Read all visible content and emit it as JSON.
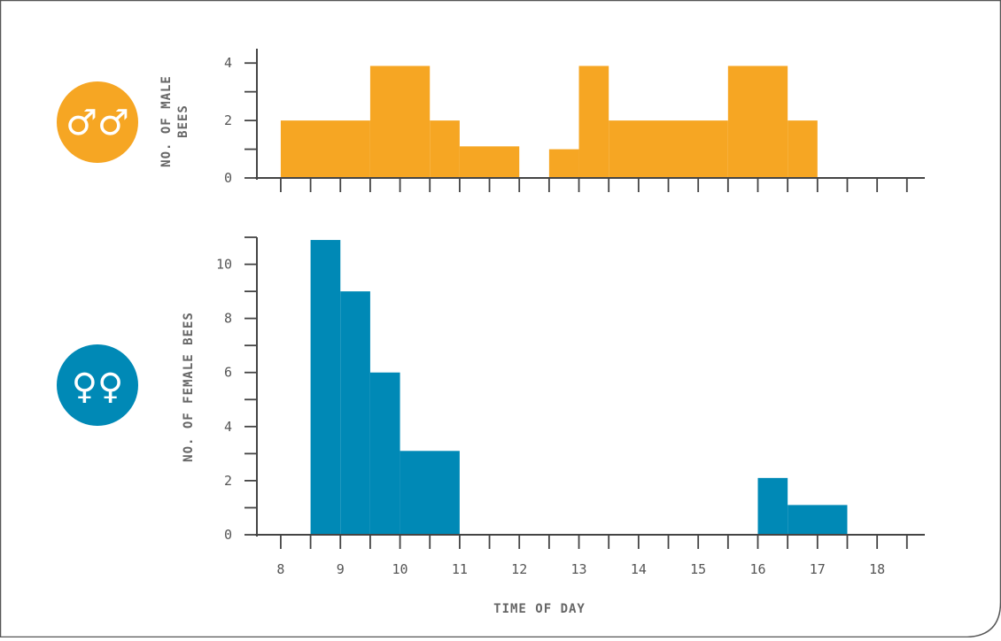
{
  "chart_data": [
    {
      "type": "bar",
      "panel": "male",
      "symbol": "♂♂",
      "color": "#F6A623",
      "ylabel": [
        "NO. OF MALE",
        "BEES"
      ],
      "ylim": [
        0,
        4.5
      ],
      "yticks": [
        0,
        2,
        4
      ],
      "bins": [
        {
          "start": 8.0,
          "end": 9.5,
          "value": 2
        },
        {
          "start": 9.5,
          "end": 10.5,
          "value": 3.9
        },
        {
          "start": 10.5,
          "end": 11.0,
          "value": 2
        },
        {
          "start": 11.0,
          "end": 12.0,
          "value": 1.1
        },
        {
          "start": 12.5,
          "end": 13.0,
          "value": 1
        },
        {
          "start": 13.0,
          "end": 13.5,
          "value": 3.9
        },
        {
          "start": 13.5,
          "end": 15.5,
          "value": 2
        },
        {
          "start": 15.5,
          "end": 16.5,
          "value": 3.9
        },
        {
          "start": 16.5,
          "end": 17.0,
          "value": 2
        }
      ]
    },
    {
      "type": "bar",
      "panel": "female",
      "symbol": "♀♀",
      "color": "#0089B6",
      "ylabel": [
        "NO. OF FEMALE BEES"
      ],
      "ylim": [
        0,
        11
      ],
      "yticks": [
        0,
        2,
        4,
        6,
        8,
        10
      ],
      "bins": [
        {
          "start": 8.5,
          "end": 9.0,
          "value": 10.9
        },
        {
          "start": 9.0,
          "end": 9.5,
          "value": 9
        },
        {
          "start": 9.5,
          "end": 10.0,
          "value": 6
        },
        {
          "start": 10.0,
          "end": 11.0,
          "value": 3.1
        },
        {
          "start": 16.0,
          "end": 16.5,
          "value": 2.1
        },
        {
          "start": 16.5,
          "end": 17.5,
          "value": 1.1
        }
      ]
    }
  ],
  "x_axis": {
    "xlim": [
      7.6,
      18.8
    ],
    "xticks": [
      8,
      9,
      10,
      11,
      12,
      13,
      14,
      15,
      16,
      17,
      18
    ],
    "minor_step": 0.5,
    "xlabel": "TIME OF DAY"
  },
  "colors": {
    "frame": "#555555",
    "axis": "#444444",
    "male": "#F6A623",
    "female": "#0089B6"
  }
}
